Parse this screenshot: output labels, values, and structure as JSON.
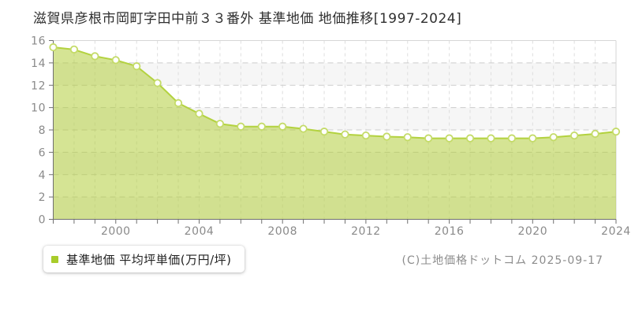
{
  "header": {
    "title": "滋賀県彦根市岡町字田中前３３番外 基準地価 地価推移[1997-2024]"
  },
  "legend": {
    "label": "基準地価 平均坪単価(万円/坪)"
  },
  "footer": {
    "copyright": "(C)土地価格ドットコム 2025-09-17"
  },
  "chart_data": {
    "type": "area",
    "title": "滋賀県彦根市岡町字田中前３３番外 基準地価 地価推移[1997-2024]",
    "x": [
      1997,
      1998,
      1999,
      2000,
      2001,
      2002,
      2003,
      2004,
      2005,
      2006,
      2007,
      2008,
      2009,
      2010,
      2011,
      2012,
      2013,
      2014,
      2015,
      2016,
      2017,
      2018,
      2019,
      2020,
      2021,
      2022,
      2023,
      2024
    ],
    "series": [
      {
        "name": "基準地価 平均坪単価(万円/坪)",
        "values": [
          15.4,
          15.2,
          14.6,
          14.25,
          13.7,
          12.2,
          10.4,
          9.45,
          8.55,
          8.3,
          8.3,
          8.3,
          8.1,
          7.85,
          7.6,
          7.5,
          7.4,
          7.35,
          7.25,
          7.25,
          7.25,
          7.25,
          7.25,
          7.25,
          7.35,
          7.5,
          7.65,
          7.85
        ]
      }
    ],
    "xlabel": "",
    "ylabel": "平均坪単価(万円/坪)",
    "ylim": [
      0,
      16
    ],
    "ytick_step": 2,
    "xtick_labels": [
      2000,
      2004,
      2008,
      2012,
      2016,
      2020,
      2024
    ],
    "grid": true,
    "legend_position": "bottom-left",
    "colors": {
      "area_fill": "rgba(179,206,61,0.55)",
      "line": "#b3d23f",
      "marker_fill": "#ffffff",
      "marker_stroke": "#c4db68",
      "legend_marker": "#a8cc2a",
      "grid_h": "#cccccc",
      "grid_v": "#dedede",
      "border": "#d6d6d6",
      "axis": "#6f6f6f",
      "tick_label": "#8a8a8a",
      "band_alt": "#f6f6f6",
      "band": "#ffffff"
    }
  }
}
